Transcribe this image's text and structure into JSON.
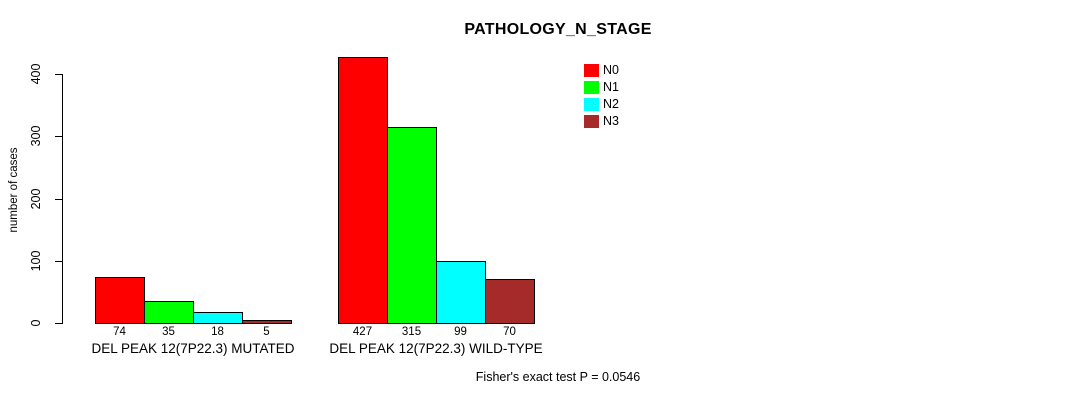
{
  "chart_data": {
    "type": "bar",
    "title": "PATHOLOGY_N_STAGE",
    "ylabel": "number of cases",
    "footer": "Fisher's exact test P = 0.0546",
    "yticks": [
      0,
      100,
      200,
      300,
      400
    ],
    "ylim": [
      0,
      430
    ],
    "grid": false,
    "legend_position": "right",
    "categories": [
      "DEL PEAK 12(7P22.3) MUTATED",
      "DEL PEAK 12(7P22.3) WILD-TYPE"
    ],
    "series": [
      {
        "name": "N0",
        "color": "#ff0000",
        "values": [
          74,
          427
        ]
      },
      {
        "name": "N1",
        "color": "#00ff00",
        "values": [
          35,
          315
        ]
      },
      {
        "name": "N2",
        "color": "#00ffff",
        "values": [
          18,
          99
        ]
      },
      {
        "name": "N3",
        "color": "#a52a2a",
        "values": [
          5,
          70
        ]
      }
    ]
  }
}
